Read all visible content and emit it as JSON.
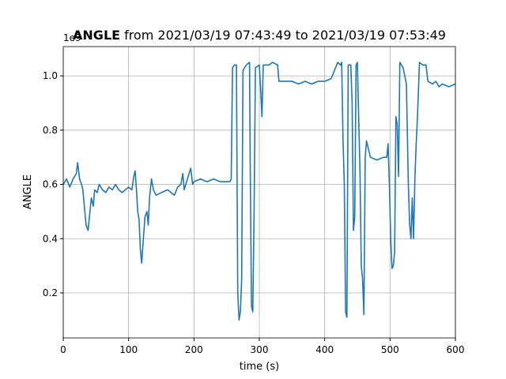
{
  "chart_data": {
    "type": "line",
    "title_prefix": "ANGLE",
    "title": "from 2021/03/19 07:43:49 to 2021/03/19 07:53:49",
    "xlabel": "time (s)",
    "ylabel": "ANGLE",
    "y_offset_label": "1e9",
    "xlim": [
      0,
      600
    ],
    "ylim": [
      0.034,
      1.108
    ],
    "xticks": [
      0,
      100,
      200,
      300,
      400,
      500,
      600
    ],
    "yticks": [
      0.2,
      0.4,
      0.6,
      0.8,
      1.0
    ],
    "grid": true,
    "series": [
      {
        "name": "ANGLE",
        "color": "#1f77b4",
        "x": [
          0,
          5,
          10,
          15,
          20,
          22,
          25,
          28,
          30,
          33,
          35,
          38,
          40,
          43,
          46,
          48,
          52,
          55,
          60,
          65,
          70,
          75,
          80,
          85,
          90,
          95,
          100,
          105,
          108,
          110,
          112,
          114,
          116,
          118,
          120,
          122,
          125,
          128,
          130,
          132,
          135,
          138,
          142,
          150,
          160,
          165,
          170,
          175,
          180,
          183,
          185,
          190,
          195,
          198,
          200,
          210,
          220,
          230,
          240,
          255,
          257,
          259,
          262,
          265,
          266,
          267,
          269,
          271,
          273,
          275,
          280,
          285,
          286,
          288,
          290,
          292,
          294,
          300,
          302,
          304,
          306,
          315,
          320,
          328,
          330,
          340,
          350,
          360,
          370,
          380,
          390,
          400,
          410,
          415,
          420,
          424,
          426,
          428,
          430,
          432,
          434,
          436,
          440,
          442,
          444,
          446,
          448,
          450,
          452,
          454,
          456,
          458,
          460,
          462,
          464,
          468,
          470,
          480,
          490,
          495,
          497,
          499,
          501,
          503,
          505,
          507,
          509,
          511,
          513,
          515,
          520,
          525,
          526,
          528,
          530,
          532,
          534,
          536,
          538,
          540,
          542,
          545,
          550,
          555,
          558,
          565,
          570,
          575,
          580,
          590,
          600
        ],
        "values": [
          0.6,
          0.62,
          0.59,
          0.62,
          0.64,
          0.68,
          0.62,
          0.6,
          0.58,
          0.5,
          0.45,
          0.43,
          0.48,
          0.55,
          0.52,
          0.58,
          0.57,
          0.6,
          0.58,
          0.57,
          0.59,
          0.58,
          0.6,
          0.58,
          0.57,
          0.58,
          0.59,
          0.58,
          0.63,
          0.65,
          0.58,
          0.5,
          0.47,
          0.36,
          0.31,
          0.38,
          0.48,
          0.5,
          0.45,
          0.55,
          0.62,
          0.58,
          0.56,
          0.57,
          0.58,
          0.57,
          0.56,
          0.59,
          0.6,
          0.64,
          0.58,
          0.62,
          0.66,
          0.6,
          0.61,
          0.62,
          0.61,
          0.62,
          0.61,
          0.61,
          0.62,
          1.03,
          1.04,
          1.04,
          0.6,
          0.2,
          0.1,
          0.13,
          0.25,
          1.02,
          1.04,
          1.05,
          0.7,
          0.15,
          0.13,
          0.5,
          1.03,
          1.04,
          0.95,
          0.85,
          1.04,
          1.04,
          1.05,
          1.04,
          0.98,
          0.98,
          0.98,
          0.97,
          0.98,
          0.97,
          0.98,
          0.98,
          0.99,
          1.02,
          1.05,
          1.04,
          1.05,
          0.77,
          0.6,
          0.13,
          0.11,
          1.04,
          1.04,
          0.9,
          0.43,
          0.48,
          1.04,
          1.05,
          0.85,
          0.65,
          0.3,
          0.25,
          0.12,
          0.7,
          0.76,
          0.72,
          0.7,
          0.69,
          0.7,
          0.7,
          0.75,
          0.6,
          0.4,
          0.29,
          0.3,
          0.35,
          0.85,
          0.82,
          0.63,
          1.05,
          1.03,
          0.97,
          0.85,
          0.6,
          0.45,
          0.4,
          0.55,
          0.4,
          0.62,
          0.75,
          0.85,
          1.05,
          1.04,
          1.04,
          0.98,
          0.97,
          0.98,
          0.96,
          0.97,
          0.96,
          0.97
        ]
      }
    ]
  }
}
